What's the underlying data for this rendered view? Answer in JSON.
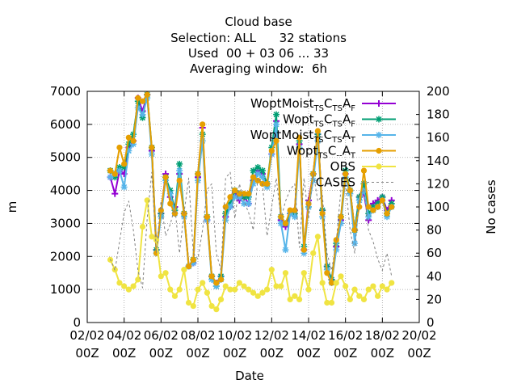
{
  "chart_data": {
    "type": "line",
    "title_lines": [
      "Cloud base",
      "Selection: ALL      32 stations",
      "Used  00 + 03 06 ... 33",
      "Averaging window:  6h"
    ],
    "xlabel": "Date",
    "ylabel": "m",
    "y2label": "No cases",
    "x_ticks": [
      {
        "x": 2.0,
        "line1": "02/02",
        "line2": "00Z"
      },
      {
        "x": 4.0,
        "line1": "04/02",
        "line2": "00Z"
      },
      {
        "x": 6.0,
        "line1": "06/02",
        "line2": "00Z"
      },
      {
        "x": 8.0,
        "line1": "08/02",
        "line2": "00Z"
      },
      {
        "x": 10.0,
        "line1": "10/02",
        "line2": "00Z"
      },
      {
        "x": 12.0,
        "line1": "12/02",
        "line2": "00Z"
      },
      {
        "x": 14.0,
        "line1": "14/02",
        "line2": "00Z"
      },
      {
        "x": 16.0,
        "line1": "16/02",
        "line2": "00Z"
      },
      {
        "x": 18.0,
        "line1": "18/02",
        "line2": "00Z"
      },
      {
        "x": 20.0,
        "line1": "20/02",
        "line2": "00Z"
      }
    ],
    "xlim": [
      2.0,
      20.0
    ],
    "ylim": [
      0,
      7000
    ],
    "y_ticks": [
      0,
      1000,
      2000,
      3000,
      4000,
      5000,
      6000,
      7000
    ],
    "y2lim": [
      0,
      200
    ],
    "y2_ticks": [
      0,
      20,
      40,
      60,
      80,
      100,
      120,
      140,
      160,
      180,
      200
    ],
    "grid": true,
    "legend_position": "top-right",
    "x": [
      3.25,
      3.5,
      3.75,
      4.0,
      4.25,
      4.5,
      4.75,
      5.0,
      5.25,
      5.5,
      5.75,
      6.0,
      6.25,
      6.5,
      6.75,
      7.0,
      7.25,
      7.5,
      7.75,
      8.0,
      8.25,
      8.5,
      8.75,
      9.0,
      9.25,
      9.5,
      9.75,
      10.0,
      10.25,
      10.5,
      10.75,
      11.0,
      11.25,
      11.5,
      11.75,
      12.0,
      12.25,
      12.5,
      12.75,
      13.0,
      13.25,
      13.5,
      13.75,
      14.0,
      14.25,
      14.5,
      14.75,
      15.0,
      15.25,
      15.5,
      15.75,
      16.0,
      16.25,
      16.5,
      16.75,
      17.0,
      17.25,
      17.5,
      17.75,
      18.0,
      18.25,
      18.5
    ],
    "series": [
      {
        "name": "WoptMoist",
        "sub1": "TS",
        "sub2": "TS",
        "sub3": "F",
        "color": "#9400d3",
        "marker": "plus",
        "values": [
          4400,
          3900,
          4600,
          4500,
          5300,
          5500,
          6800,
          6400,
          6900,
          5200,
          2200,
          3300,
          4500,
          3800,
          3500,
          4500,
          3300,
          1700,
          1800,
          4400,
          5900,
          3100,
          1400,
          1200,
          1400,
          3200,
          3500,
          3900,
          3700,
          3800,
          3600,
          4300,
          4600,
          4500,
          4200,
          5100,
          6100,
          3100,
          2900,
          3300,
          3400,
          5400,
          2200,
          3700,
          4500,
          5700,
          3400,
          1700,
          1300,
          2300,
          3100,
          4500,
          4000,
          2800,
          3800,
          3900,
          3100,
          3600,
          3700,
          3800,
          3400,
          3700
        ]
      },
      {
        "name": "Wopt",
        "sub1": "TS",
        "sub2": "TS",
        "sub3": "F",
        "color": "#009e73",
        "marker": "star",
        "values": [
          4600,
          4400,
          4700,
          4700,
          5400,
          5700,
          6700,
          6200,
          6900,
          5300,
          2200,
          3300,
          4400,
          4000,
          3400,
          4800,
          3300,
          1700,
          1900,
          4500,
          5700,
          3200,
          1400,
          1100,
          1400,
          3300,
          3600,
          4000,
          3900,
          3800,
          3800,
          4600,
          4700,
          4600,
          4200,
          5300,
          6300,
          3200,
          3000,
          3300,
          3300,
          5500,
          2300,
          3500,
          4500,
          5700,
          3400,
          1700,
          1300,
          2400,
          3200,
          4600,
          4000,
          2800,
          3800,
          4200,
          3300,
          3500,
          3600,
          3800,
          3300,
          3600
        ]
      },
      {
        "name": "WoptMoist",
        "sub1": "TS",
        "sub2": "TS",
        "sub3": "T",
        "color": "#56b4e9",
        "marker": "star",
        "values": [
          4400,
          4500,
          4600,
          4100,
          5200,
          5400,
          6500,
          6300,
          6800,
          5100,
          2100,
          3200,
          4300,
          3900,
          3300,
          4600,
          3200,
          1700,
          1800,
          4300,
          5500,
          3100,
          1300,
          1100,
          1300,
          3100,
          3500,
          3800,
          3800,
          3600,
          3600,
          4200,
          4500,
          4400,
          4100,
          5100,
          6000,
          3000,
          2200,
          3300,
          3200,
          5300,
          2100,
          3500,
          4300,
          5500,
          3200,
          1600,
          1200,
          2200,
          3000,
          4400,
          3900,
          2400,
          3700,
          4000,
          3200,
          3400,
          3500,
          3700,
          3200,
          3500
        ]
      },
      {
        "name": "Wopt",
        "sub1": "TS",
        "sub2": "--",
        "sub3": "T",
        "color": "#e69f00",
        "marker": "circle",
        "values": [
          4600,
          4500,
          5300,
          4800,
          5600,
          5500,
          6800,
          6700,
          6900,
          5300,
          2100,
          3400,
          4400,
          3600,
          3300,
          4300,
          3300,
          1700,
          1900,
          4500,
          6000,
          3200,
          1400,
          1200,
          1300,
          3500,
          3800,
          4000,
          3900,
          3900,
          3900,
          4400,
          4300,
          4200,
          4200,
          5200,
          5500,
          3200,
          3000,
          3400,
          3400,
          5600,
          2200,
          3600,
          4500,
          5800,
          3300,
          1500,
          1200,
          2500,
          3200,
          4500,
          4000,
          2800,
          3500,
          4600,
          3500,
          3400,
          3500,
          3700,
          3300,
          3500
        ]
      },
      {
        "name": "OBS",
        "color": "#f0e442",
        "marker": "circle",
        "values": [
          1900,
          1600,
          1200,
          1100,
          1000,
          1100,
          1300,
          2900,
          3700,
          2600,
          2500,
          1400,
          1500,
          1000,
          800,
          1000,
          1600,
          600,
          500,
          1000,
          1200,
          900,
          500,
          400,
          700,
          1100,
          1000,
          1000,
          1200,
          1100,
          1000,
          900,
          800,
          900,
          1000,
          1600,
          1100,
          1100,
          1500,
          700,
          800,
          700,
          1500,
          1000,
          2100,
          2600,
          1200,
          600,
          600,
          1200,
          1400,
          1100,
          700,
          1000,
          800,
          700,
          1000,
          1100,
          800,
          1100,
          1000,
          1200
        ]
      },
      {
        "name": "CASES",
        "color": "#808080",
        "marker": "none",
        "axis": "y2",
        "dash": true,
        "values": [
          55,
          45,
          70,
          95,
          105,
          80,
          45,
          30,
          90,
          130,
          60,
          105,
          75,
          85,
          100,
          60,
          95,
          125,
          60,
          55,
          80,
          115,
          120,
          60,
          45,
          125,
          130,
          90,
          120,
          105,
          95,
          80,
          125,
          120,
          75,
          100,
          125,
          90,
          105,
          115,
          120,
          65,
          125,
          90,
          130,
          105,
          110,
          60,
          45,
          70,
          115,
          120,
          80,
          60,
          110,
          115,
          80,
          70,
          55,
          45,
          60,
          40
        ]
      }
    ]
  }
}
